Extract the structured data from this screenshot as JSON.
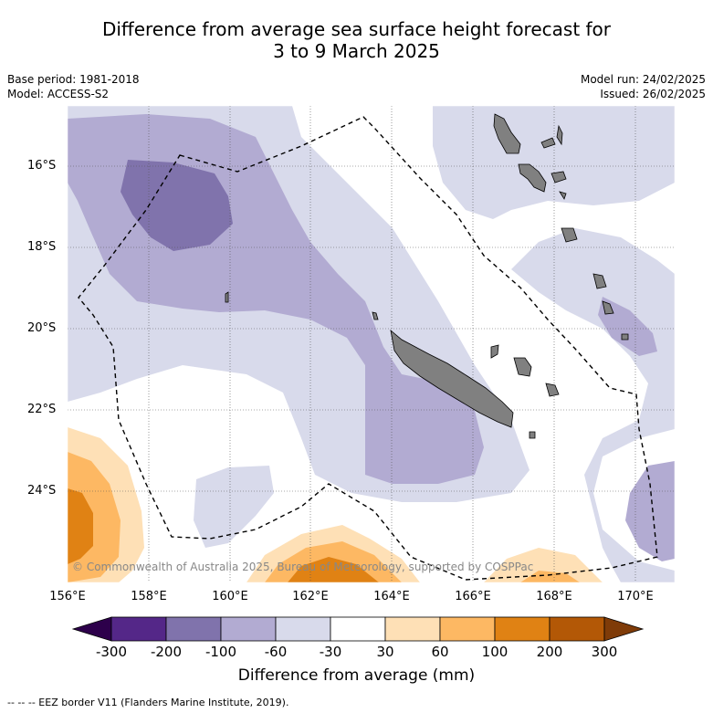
{
  "title_line1": "Difference from average sea surface height forecast for",
  "title_line2": "3 to 9 March 2025",
  "meta": {
    "base_period": "Base period: 1981-2018",
    "model": "Model: ACCESS-S2",
    "model_run": "Model run: 24/02/2025",
    "issued": "Issued: 26/02/2025"
  },
  "map": {
    "lat_labels": [
      "16°S",
      "18°S",
      "20°S",
      "22°S",
      "24°S"
    ],
    "lon_labels": [
      "156°E",
      "158°E",
      "160°E",
      "162°E",
      "164°E",
      "166°E",
      "168°E",
      "170°E"
    ],
    "copyright": "© Commonwealth of Australia 2025, Bureau of Meteorology, supported by COSPPac",
    "land_color": "#808080",
    "gridlines": true
  },
  "colorbar": {
    "ticks": [
      "-300",
      "-200",
      "-100",
      "-60",
      "-30",
      "30",
      "60",
      "100",
      "200",
      "300"
    ],
    "colors": [
      "#2d004b",
      "#542788",
      "#8073ac",
      "#b2abd2",
      "#d8daeb",
      "#ffffff",
      "#fee0b6",
      "#fdb863",
      "#e08214",
      "#b35806",
      "#7f3b08"
    ],
    "title": "Difference from average (mm)"
  },
  "footer": "--  --  -- EEZ border V11 (Flanders Marine Institute, 2019)."
}
